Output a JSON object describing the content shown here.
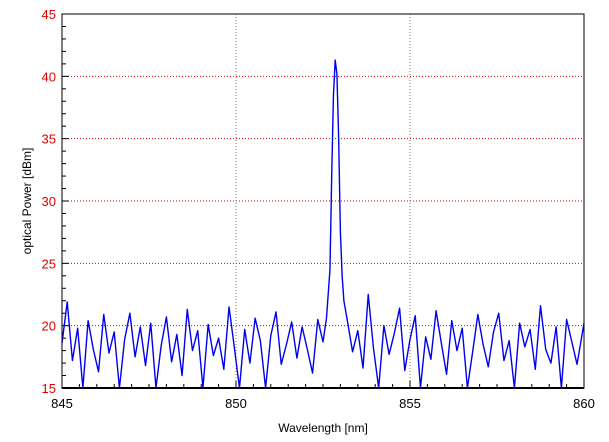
{
  "chart_data": {
    "type": "line",
    "title": "",
    "xlabel": "Wavelength [nm]",
    "ylabel": "optical Power [dBm]",
    "xlim": [
      845,
      860
    ],
    "ylim": [
      15,
      45
    ],
    "xticks": [
      845,
      850,
      855,
      860
    ],
    "yticks": [
      15,
      20,
      25,
      30,
      35,
      40,
      45
    ],
    "x_minor_step": 0.5,
    "y_minor_step": 1,
    "grid": true,
    "legend": "none",
    "colors": {
      "series": "#0000ee",
      "y_tick_labels": "#e00000",
      "y_gridlines": "#e00000",
      "x_gridlines": "#7a7a7a"
    },
    "series": [
      {
        "x": [
          845.0,
          845.15,
          845.3,
          845.45,
          845.6,
          845.75,
          845.9,
          846.05,
          846.2,
          846.35,
          846.5,
          846.65,
          846.8,
          846.95,
          847.1,
          847.25,
          847.4,
          847.55,
          847.7,
          847.85,
          848.0,
          848.15,
          848.3,
          848.45,
          848.6,
          848.75,
          848.9,
          849.05,
          849.2,
          849.35,
          849.5,
          849.65,
          849.8,
          849.95,
          850.1,
          850.25,
          850.4,
          850.55,
          850.7,
          850.85,
          851.0,
          851.15,
          851.3,
          851.45,
          851.6,
          851.75,
          851.9,
          852.05,
          852.2,
          852.35,
          852.5,
          852.6,
          852.7,
          852.75,
          852.8,
          852.85,
          852.9,
          852.95,
          853.0,
          853.05,
          853.1,
          853.2,
          853.35,
          853.5,
          853.65,
          853.8,
          853.95,
          854.1,
          854.25,
          854.4,
          854.55,
          854.7,
          854.85,
          855.0,
          855.15,
          855.3,
          855.45,
          855.6,
          855.75,
          855.9,
          856.05,
          856.2,
          856.35,
          856.5,
          856.65,
          856.8,
          856.95,
          857.1,
          857.25,
          857.4,
          857.55,
          857.7,
          857.85,
          858.0,
          858.15,
          858.3,
          858.45,
          858.6,
          858.75,
          858.9,
          859.05,
          859.2,
          859.35,
          859.5,
          859.65,
          859.8,
          860.0
        ],
        "values": [
          18.6,
          21.9,
          17.2,
          19.8,
          15.0,
          20.4,
          18.1,
          16.3,
          20.9,
          17.8,
          19.5,
          15.0,
          18.9,
          21.0,
          17.5,
          19.9,
          16.8,
          20.2,
          15.0,
          18.4,
          20.7,
          17.1,
          19.3,
          16.0,
          21.3,
          18.0,
          19.6,
          15.0,
          20.1,
          17.6,
          19.0,
          16.5,
          21.5,
          18.3,
          15.0,
          19.7,
          17.0,
          20.6,
          18.8,
          15.0,
          19.2,
          21.1,
          16.9,
          18.5,
          20.3,
          17.4,
          19.9,
          18.1,
          16.2,
          20.5,
          18.7,
          20.6,
          24.5,
          32.0,
          38.5,
          41.3,
          40.2,
          35.0,
          27.5,
          24.0,
          22.0,
          20.4,
          17.9,
          19.6,
          16.6,
          22.5,
          18.2,
          15.0,
          20.0,
          17.7,
          19.4,
          21.4,
          16.4,
          18.9,
          20.8,
          15.0,
          19.1,
          17.3,
          21.2,
          18.6,
          16.1,
          20.4,
          18.0,
          19.8,
          15.0,
          17.9,
          20.9,
          18.5,
          16.7,
          19.5,
          21.0,
          17.2,
          18.8,
          15.0,
          20.2,
          18.3,
          19.7,
          16.5,
          21.6,
          18.1,
          17.0,
          19.9,
          15.0,
          20.5,
          18.7,
          16.9,
          20.2
        ]
      }
    ]
  }
}
